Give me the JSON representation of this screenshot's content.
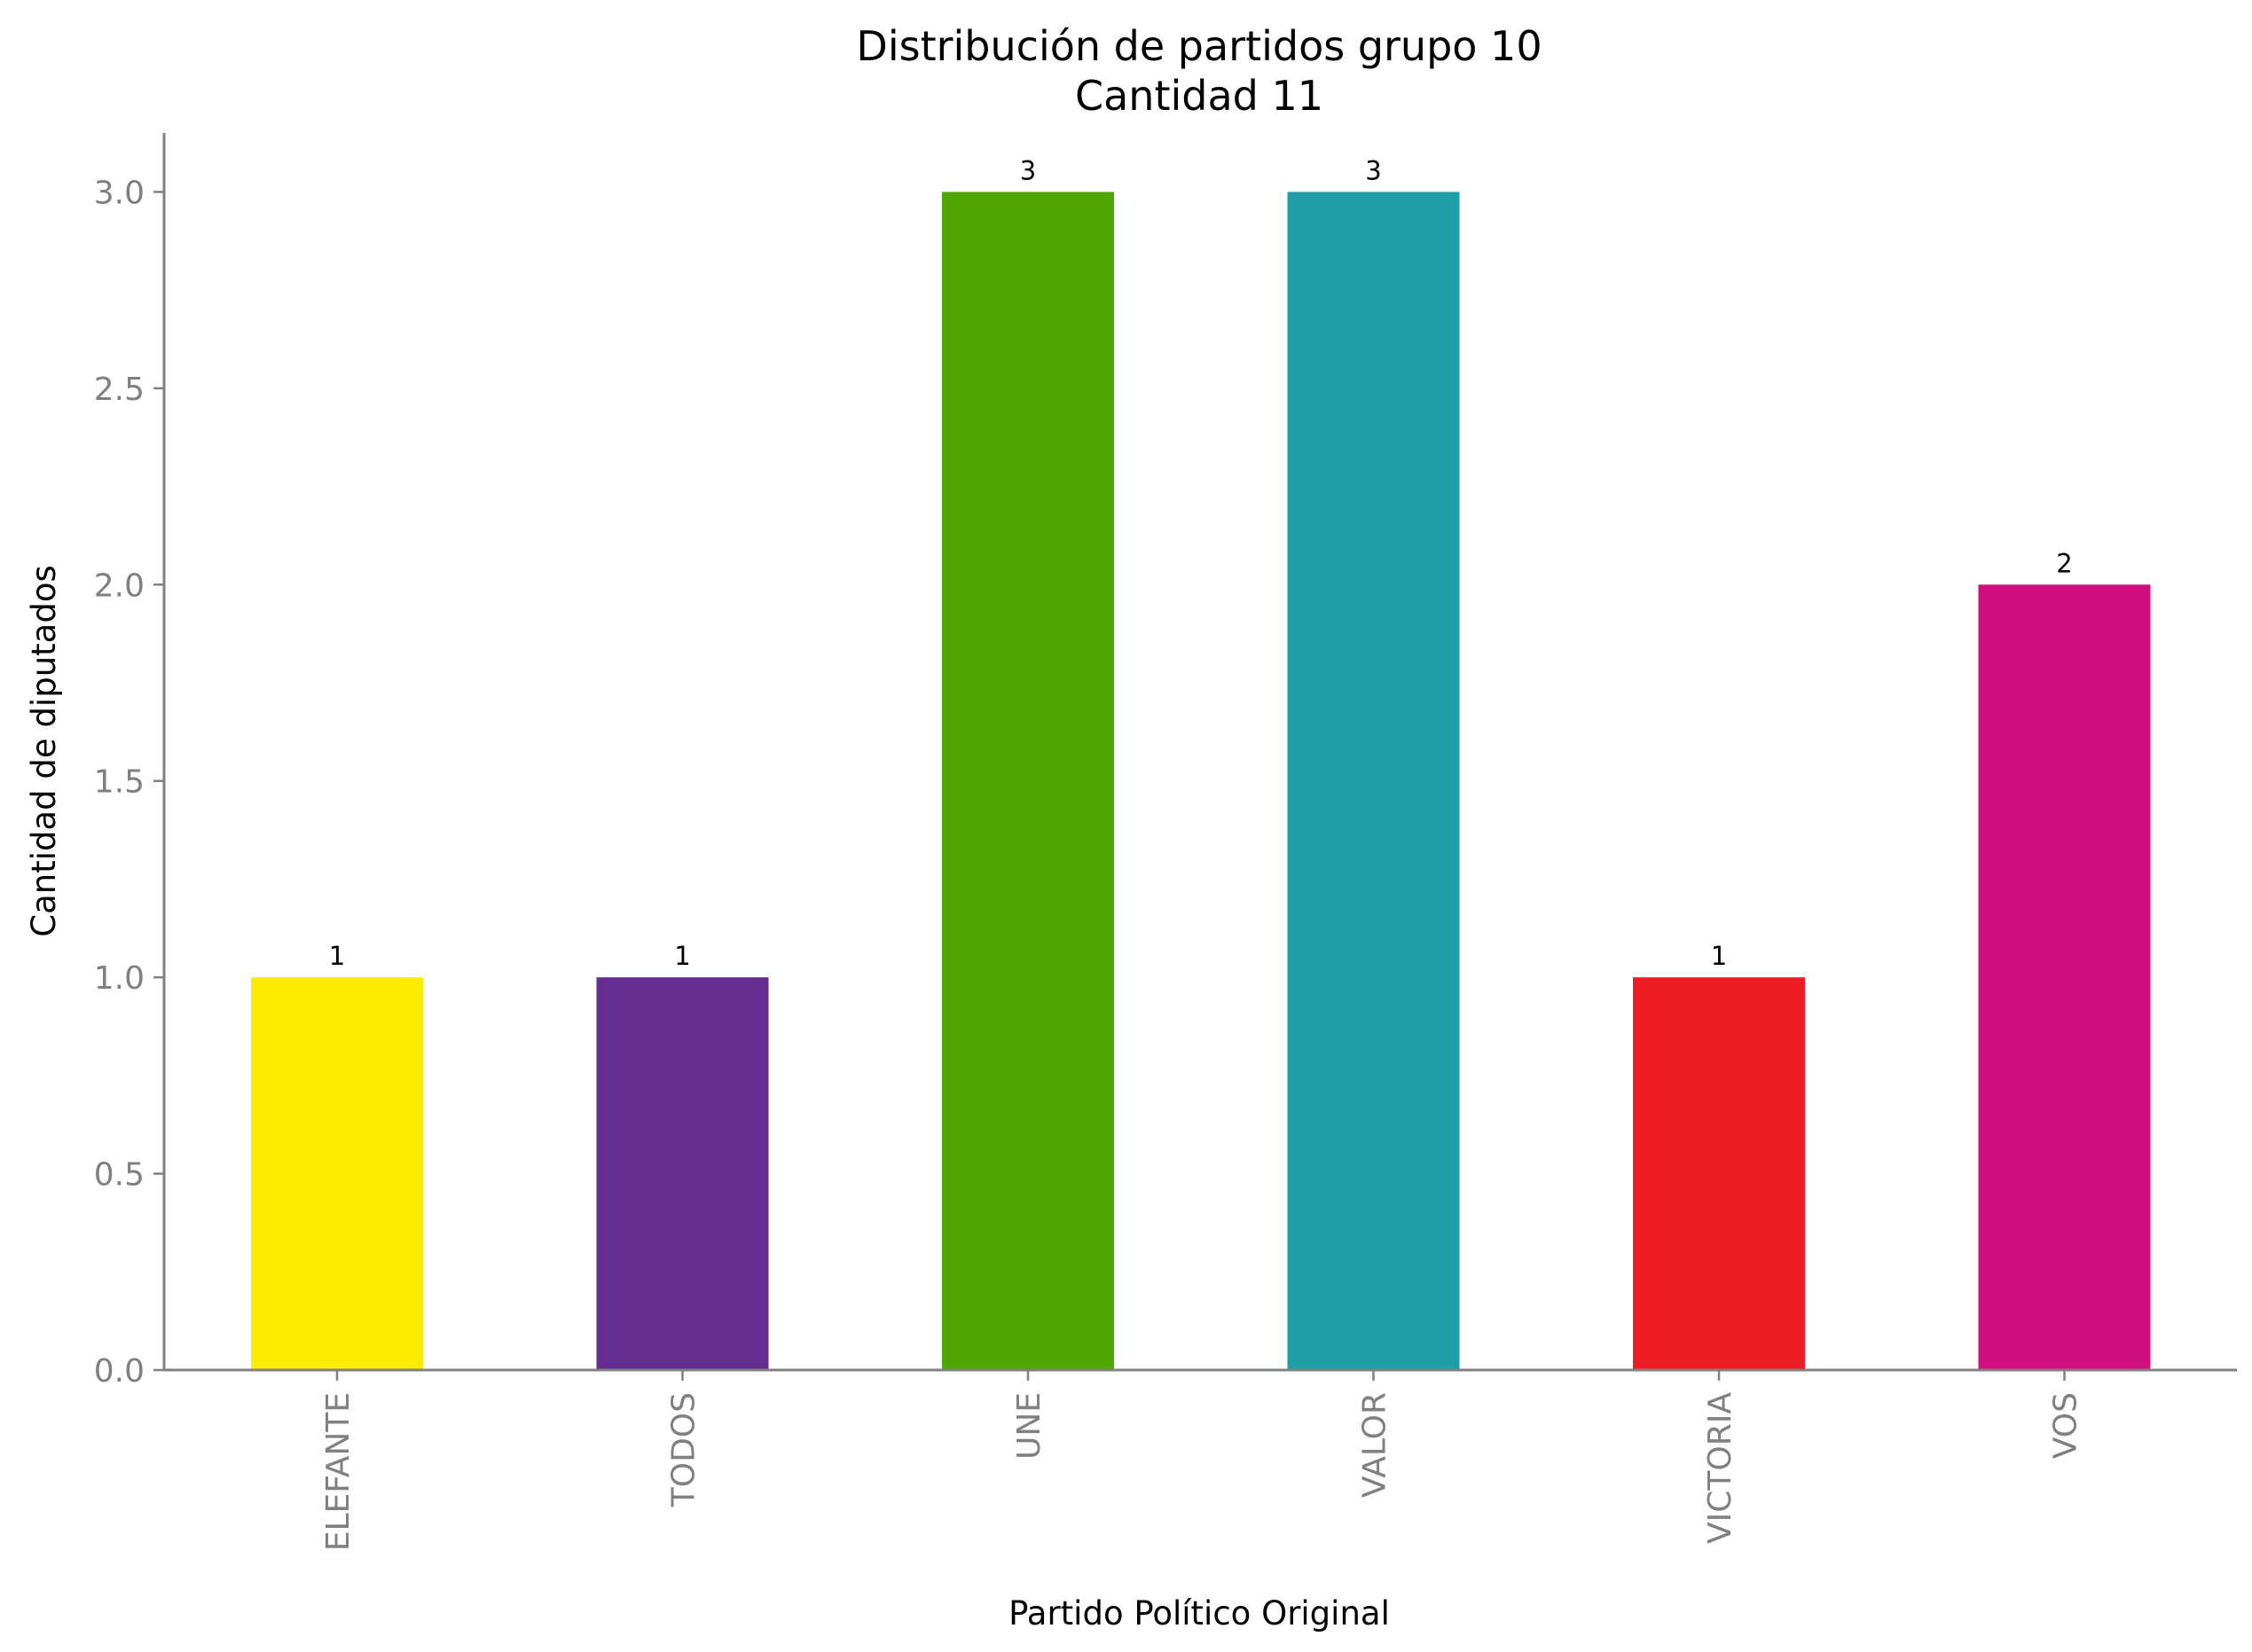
{
  "chart_data": {
    "type": "bar",
    "title": "Distribución de partidos grupo 10",
    "subtitle": "Cantidad 11",
    "xlabel": "Partido Político Original",
    "ylabel": "Cantidad de diputados",
    "categories": [
      "ELEFANTE",
      "TODOS",
      "UNE",
      "VALOR",
      "VICTORIA",
      "VOS"
    ],
    "values": [
      1,
      1,
      3,
      3,
      1,
      2
    ],
    "value_labels": [
      "1",
      "1",
      "3",
      "3",
      "1",
      "2"
    ],
    "colors": [
      "#ffed00",
      "#642d8f",
      "#4fa600",
      "#209ea7",
      "#ee1c25",
      "#cf0e80"
    ],
    "ylim": [
      0,
      3.15
    ],
    "yticks": [
      0.0,
      0.5,
      1.0,
      1.5,
      2.0,
      2.5,
      3.0
    ],
    "ytick_labels": [
      "0.0",
      "0.5",
      "1.0",
      "1.5",
      "2.0",
      "2.5",
      "3.0"
    ],
    "grid": false,
    "legend": "none"
  }
}
